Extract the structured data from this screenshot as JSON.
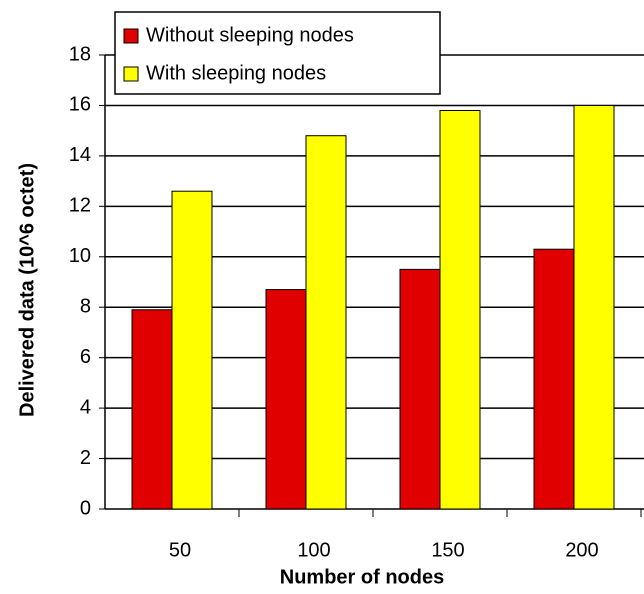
{
  "chart_data": {
    "type": "bar",
    "x_label": "Number of nodes",
    "y_label": "Delivered data (10^6 octet)",
    "categories": [
      "50",
      "100",
      "150",
      "200"
    ],
    "series": [
      {
        "name": "Without sleeping nodes",
        "color": "#e00000",
        "values": [
          7.9,
          8.7,
          9.5,
          10.3
        ]
      },
      {
        "name": "With sleeping nodes",
        "color": "#ffff00",
        "values": [
          12.6,
          14.8,
          15.8,
          16.0
        ]
      }
    ],
    "ylim": [
      0,
      18
    ],
    "yticks": [
      0,
      2,
      4,
      6,
      8,
      10,
      12,
      14,
      16,
      18
    ],
    "grid": true
  }
}
